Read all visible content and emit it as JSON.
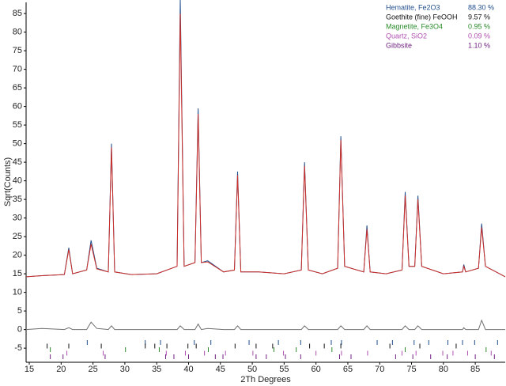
{
  "chart_data": {
    "type": "line",
    "x_label": "2Th Degrees",
    "y_label": "Sqrt(Counts)",
    "xlim": [
      14.5,
      89.7
    ],
    "ylim": [
      -8.8,
      88
    ],
    "xticks": [
      15,
      20,
      25,
      30,
      35,
      40,
      45,
      50,
      55,
      60,
      65,
      70,
      75,
      80,
      85
    ],
    "yticks": [
      -5,
      0,
      5,
      10,
      15,
      20,
      25,
      30,
      35,
      40,
      45,
      50,
      55,
      60,
      65,
      70,
      75,
      80,
      85
    ],
    "x": [
      14.5,
      17,
      20.5,
      21.2,
      21.8,
      24.0,
      24.7,
      25.6,
      27.4,
      27.9,
      28.4,
      31,
      35,
      38.2,
      38.7,
      39.3,
      41.0,
      41.5,
      42.0,
      43.0,
      45.5,
      47.2,
      47.7,
      48.2,
      51,
      55,
      57.7,
      58.2,
      58.8,
      61,
      63.4,
      63.9,
      64.5,
      67.5,
      68.0,
      68.5,
      71,
      73.5,
      74.0,
      74.6,
      75.5,
      76.0,
      76.6,
      80,
      83.0,
      83.2,
      83.5,
      85.5,
      86.0,
      86.6,
      89.7
    ],
    "series": [
      {
        "color": "#1f4e8c",
        "values": [
          14.2,
          14.5,
          14.8,
          22,
          15,
          16,
          24,
          16.5,
          15.5,
          50,
          15.5,
          14.8,
          15,
          17,
          89,
          17,
          18,
          59.5,
          18,
          18.5,
          15.5,
          16,
          42.5,
          15.5,
          15.5,
          15,
          16,
          45,
          16,
          15,
          16.5,
          52,
          17,
          15.5,
          28,
          15.5,
          15,
          16,
          37,
          17,
          17,
          36,
          17,
          15,
          15.5,
          17.5,
          15.5,
          16.5,
          28.5,
          17,
          14.2
        ]
      },
      {
        "color": "#d0302a",
        "values": [
          14.2,
          14.5,
          14.8,
          21.5,
          15,
          16,
          23,
          16.3,
          15.5,
          49,
          15.5,
          14.8,
          15,
          17,
          85,
          17,
          18,
          58,
          18,
          18.2,
          15.5,
          16,
          41.5,
          15.5,
          15.5,
          15,
          16,
          44,
          16,
          15,
          16.5,
          51,
          17,
          15.5,
          27,
          15.5,
          15,
          16,
          36,
          17,
          17,
          35,
          17,
          15,
          15.5,
          17,
          15.5,
          16.5,
          27.5,
          17,
          14.2
        ]
      },
      {
        "color": "#707070",
        "values": [
          0,
          0.3,
          0,
          0.5,
          0,
          0,
          2,
          0.3,
          0,
          1,
          0,
          0,
          0,
          0,
          1,
          0,
          0,
          1.5,
          0,
          0.3,
          0,
          0,
          1,
          0,
          0,
          0,
          0,
          1,
          0,
          0,
          0,
          1,
          0,
          0,
          1,
          0,
          0,
          0,
          1,
          0,
          0,
          1,
          0,
          0,
          0,
          0.5,
          0,
          0,
          2.5,
          0,
          0
        ]
      }
    ],
    "phases": [
      {
        "name": "Hematite, Fe2O3",
        "amount": "88.30 %",
        "color": "#1f4e8c",
        "positions": [
          24.1,
          33.2,
          35.6,
          40.9,
          43.5,
          49.5,
          54.1,
          57.6,
          62.4,
          64.0,
          69.6,
          72.0,
          75.4,
          77.7,
          80.7,
          83.0,
          84.9,
          88.5
        ]
      },
      {
        "name": "Goethite (fine)  FeOOH",
        "amount": "9.57 %",
        "color": "#111111",
        "positions": [
          17.8,
          21.2,
          26.3,
          33.2,
          34.7,
          36.6,
          39.9,
          41.2,
          47.3,
          50.6,
          53.2,
          59.0,
          61.3,
          63.9,
          71.6,
          76.3,
          82.0
        ]
      },
      {
        "name": "Magnetite, Fe3O4",
        "amount": "0.95 %",
        "color": "#2a8a2a",
        "positions": [
          18.3,
          30.1,
          35.4,
          43.1,
          53.4,
          56.9,
          62.5,
          74.0,
          86.7
        ]
      },
      {
        "name": "Quartz, SiO2",
        "amount": "0.09 %",
        "color": "#b050b0",
        "positions": [
          20.9,
          26.6,
          36.5,
          39.5,
          42.5,
          45.8,
          50.1,
          54.9,
          60.0,
          64.0,
          68.1,
          73.5,
          75.7,
          79.9,
          81.5,
          83.8,
          87.5
        ]
      },
      {
        "name": "Gibbsite",
        "amount": "1.10 %",
        "color": "#702080",
        "positions": [
          18.3,
          20.3,
          26.9,
          36.4,
          37.7,
          40.0,
          44.2,
          45.4,
          50.6,
          52.2,
          55.2,
          57.6,
          63.7,
          65.5,
          72.5,
          75.2,
          78.0,
          80.6,
          85.0,
          88.0
        ]
      }
    ]
  }
}
